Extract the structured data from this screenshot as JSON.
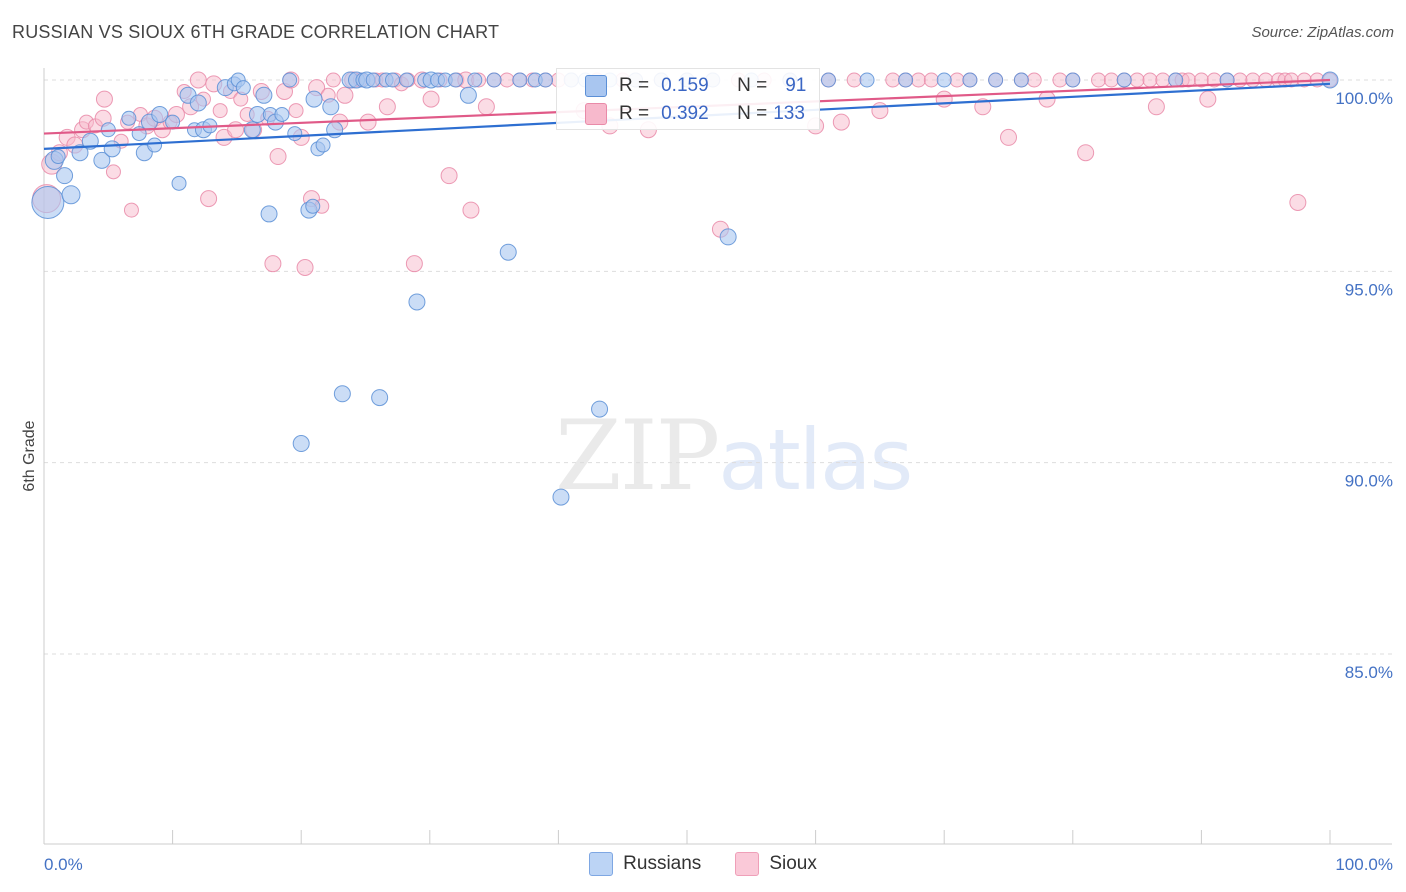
{
  "header": {
    "title": "RUSSIAN VS SIOUX 6TH GRADE CORRELATION CHART",
    "source": "Source: ZipAtlas.com"
  },
  "watermark": {
    "zip": "ZIP",
    "atlas": "atlas"
  },
  "colors": {
    "russians_fill": "#a9c6f0",
    "russians_stroke": "#5b8fd6",
    "russians_line": "#2e6fd1",
    "sioux_fill": "#f7b9cc",
    "sioux_stroke": "#e98aa8",
    "sioux_line": "#e05a88",
    "grid": "#dddddd",
    "axis_label": "#4472c4"
  },
  "legend": {
    "rows": [
      {
        "r_label": "R =",
        "r_value": "0.159",
        "n_label": "N =",
        "n_value": "91"
      },
      {
        "r_label": "R =",
        "r_value": "0.392",
        "n_label": "N =",
        "n_value": "133"
      }
    ],
    "bottom": [
      "Russians",
      "Sioux"
    ]
  },
  "chart_data": {
    "type": "scatter",
    "title": "RUSSIAN VS SIOUX 6TH GRADE CORRELATION CHART",
    "xlabel": "",
    "ylabel": "6th Grade",
    "xlim": [
      0,
      100
    ],
    "ylim": [
      80.5,
      100.3
    ],
    "x_tick_labels": [
      "0.0%",
      "100.0%"
    ],
    "y_ticks": [
      {
        "value": 100,
        "label": "100.0%"
      },
      {
        "value": 95,
        "label": "95.0%"
      },
      {
        "value": 90,
        "label": "90.0%"
      },
      {
        "value": 85,
        "label": "85.0%"
      }
    ],
    "series": [
      {
        "name": "Russians",
        "r": 0.159,
        "n": 91,
        "trend": {
          "x": [
            0,
            100
          ],
          "y": [
            98.2,
            99.9
          ]
        },
        "points": [
          [
            0.3,
            96.8,
            16
          ],
          [
            0.8,
            97.9,
            9
          ],
          [
            1.6,
            97.5,
            8
          ],
          [
            2.1,
            97.0,
            9
          ],
          [
            1.1,
            98.0,
            7
          ],
          [
            2.8,
            98.1,
            8
          ],
          [
            3.6,
            98.4,
            8
          ],
          [
            4.5,
            97.9,
            8
          ],
          [
            5.3,
            98.2,
            8
          ],
          [
            5.0,
            98.7,
            7
          ],
          [
            6.6,
            99.0,
            7
          ],
          [
            7.4,
            98.6,
            7
          ],
          [
            7.8,
            98.1,
            8
          ],
          [
            8.2,
            98.9,
            8
          ],
          [
            8.6,
            98.3,
            7
          ],
          [
            9.0,
            99.1,
            8
          ],
          [
            10.0,
            98.9,
            7
          ],
          [
            10.5,
            97.3,
            7
          ],
          [
            11.2,
            99.6,
            8
          ],
          [
            11.7,
            98.7,
            7
          ],
          [
            12.0,
            99.4,
            8
          ],
          [
            12.4,
            98.7,
            8
          ],
          [
            12.9,
            98.8,
            7
          ],
          [
            14.1,
            99.8,
            8
          ],
          [
            14.8,
            99.9,
            7
          ],
          [
            15.1,
            100.0,
            7
          ],
          [
            15.5,
            99.8,
            7
          ],
          [
            16.2,
            98.7,
            8
          ],
          [
            16.6,
            99.1,
            8
          ],
          [
            17.1,
            99.6,
            8
          ],
          [
            17.6,
            99.1,
            7
          ],
          [
            18.0,
            98.9,
            8
          ],
          [
            18.5,
            99.1,
            7
          ],
          [
            17.5,
            96.5,
            8
          ],
          [
            19.1,
            100.0,
            7
          ],
          [
            19.5,
            98.6,
            7
          ],
          [
            20.0,
            90.5,
            8
          ],
          [
            20.6,
            96.6,
            8
          ],
          [
            20.9,
            96.7,
            7
          ],
          [
            21.0,
            99.5,
            8
          ],
          [
            21.3,
            98.2,
            7
          ],
          [
            21.7,
            98.3,
            7
          ],
          [
            22.3,
            99.3,
            8
          ],
          [
            22.6,
            98.7,
            8
          ],
          [
            23.2,
            91.8,
            8
          ],
          [
            23.8,
            100.0,
            8
          ],
          [
            24.3,
            100.0,
            8
          ],
          [
            24.8,
            100.0,
            7
          ],
          [
            25.1,
            100.0,
            8
          ],
          [
            25.6,
            100.0,
            7
          ],
          [
            26.1,
            91.7,
            8
          ],
          [
            26.6,
            100.0,
            7
          ],
          [
            27.1,
            100.0,
            7
          ],
          [
            28.2,
            100.0,
            7
          ],
          [
            29.0,
            94.2,
            8
          ],
          [
            29.6,
            100.0,
            7
          ],
          [
            30.1,
            100.0,
            8
          ],
          [
            30.6,
            100.0,
            7
          ],
          [
            31.2,
            100.0,
            7
          ],
          [
            32.0,
            100.0,
            7
          ],
          [
            33.0,
            99.6,
            8
          ],
          [
            33.5,
            100.0,
            7
          ],
          [
            35.0,
            100.0,
            7
          ],
          [
            36.1,
            95.5,
            8
          ],
          [
            37.0,
            100.0,
            7
          ],
          [
            38.2,
            100.0,
            7
          ],
          [
            39.0,
            100.0,
            7
          ],
          [
            40.2,
            89.1,
            8
          ],
          [
            41.0,
            100.0,
            7
          ],
          [
            42.1,
            100.0,
            7
          ],
          [
            43.2,
            91.4,
            8
          ],
          [
            44.0,
            100.0,
            7
          ],
          [
            46.0,
            100.0,
            7
          ],
          [
            48.0,
            100.0,
            7
          ],
          [
            50.0,
            100.0,
            7
          ],
          [
            52.0,
            100.0,
            7
          ],
          [
            53.2,
            95.9,
            8
          ],
          [
            55.0,
            100.0,
            7
          ],
          [
            58.0,
            100.0,
            7
          ],
          [
            61.0,
            100.0,
            7
          ],
          [
            64.0,
            100.0,
            7
          ],
          [
            67.0,
            100.0,
            7
          ],
          [
            70.0,
            100.0,
            7
          ],
          [
            72.0,
            100.0,
            7
          ],
          [
            74.0,
            100.0,
            7
          ],
          [
            76.0,
            100.0,
            7
          ],
          [
            80.0,
            100.0,
            7
          ],
          [
            84.0,
            100.0,
            7
          ],
          [
            88.0,
            100.0,
            7
          ],
          [
            92.0,
            100.0,
            7
          ],
          [
            100.0,
            100.0,
            8
          ]
        ]
      },
      {
        "name": "Sioux",
        "r": 0.392,
        "n": 133,
        "trend": {
          "x": [
            0,
            100
          ],
          "y": [
            98.6,
            100.0
          ]
        },
        "points": [
          [
            0.2,
            96.9,
            14
          ],
          [
            0.6,
            97.8,
            10
          ],
          [
            1.2,
            98.1,
            8
          ],
          [
            1.8,
            98.5,
            8
          ],
          [
            2.4,
            98.3,
            8
          ],
          [
            3.0,
            98.7,
            8
          ],
          [
            3.3,
            98.9,
            7
          ],
          [
            4.0,
            98.8,
            7
          ],
          [
            4.6,
            99.0,
            8
          ],
          [
            4.7,
            99.5,
            8
          ],
          [
            5.4,
            97.6,
            7
          ],
          [
            6.0,
            98.4,
            7
          ],
          [
            6.5,
            98.9,
            7
          ],
          [
            6.8,
            96.6,
            7
          ],
          [
            7.5,
            99.1,
            7
          ],
          [
            8.0,
            98.8,
            8
          ],
          [
            8.6,
            99.0,
            8
          ],
          [
            9.2,
            98.7,
            8
          ],
          [
            9.8,
            98.9,
            7
          ],
          [
            10.3,
            99.1,
            8
          ],
          [
            10.9,
            99.7,
            7
          ],
          [
            11.4,
            99.3,
            8
          ],
          [
            12.0,
            100.0,
            8
          ],
          [
            12.4,
            99.5,
            7
          ],
          [
            12.8,
            96.9,
            8
          ],
          [
            13.2,
            99.9,
            8
          ],
          [
            13.7,
            99.2,
            7
          ],
          [
            14.0,
            98.5,
            8
          ],
          [
            14.5,
            99.7,
            7
          ],
          [
            14.9,
            98.7,
            8
          ],
          [
            15.3,
            99.5,
            7
          ],
          [
            15.8,
            99.1,
            7
          ],
          [
            16.3,
            98.7,
            8
          ],
          [
            16.9,
            99.7,
            8
          ],
          [
            17.4,
            99.0,
            7
          ],
          [
            17.8,
            95.2,
            8
          ],
          [
            18.2,
            98.0,
            8
          ],
          [
            18.7,
            99.7,
            8
          ],
          [
            19.2,
            100.0,
            8
          ],
          [
            19.6,
            99.2,
            7
          ],
          [
            20.0,
            98.5,
            8
          ],
          [
            20.3,
            95.1,
            8
          ],
          [
            20.8,
            96.9,
            8
          ],
          [
            21.2,
            99.8,
            8
          ],
          [
            21.6,
            96.7,
            7
          ],
          [
            22.1,
            99.6,
            7
          ],
          [
            22.5,
            100.0,
            7
          ],
          [
            23.0,
            98.9,
            8
          ],
          [
            23.4,
            99.6,
            8
          ],
          [
            24.0,
            100.0,
            8
          ],
          [
            24.6,
            100.0,
            7
          ],
          [
            25.2,
            98.9,
            8
          ],
          [
            25.8,
            100.0,
            7
          ],
          [
            26.3,
            100.0,
            7
          ],
          [
            26.7,
            99.3,
            8
          ],
          [
            27.3,
            100.0,
            7
          ],
          [
            27.8,
            99.9,
            7
          ],
          [
            28.3,
            100.0,
            7
          ],
          [
            28.8,
            95.2,
            8
          ],
          [
            29.4,
            100.0,
            8
          ],
          [
            30.1,
            99.5,
            8
          ],
          [
            30.8,
            100.0,
            7
          ],
          [
            31.5,
            97.5,
            8
          ],
          [
            32.1,
            100.0,
            7
          ],
          [
            32.8,
            100.0,
            8
          ],
          [
            33.2,
            96.6,
            8
          ],
          [
            33.8,
            100.0,
            7
          ],
          [
            34.4,
            99.3,
            8
          ],
          [
            35.0,
            100.0,
            7
          ],
          [
            36.0,
            100.0,
            7
          ],
          [
            37.0,
            100.0,
            7
          ],
          [
            38.0,
            100.0,
            7
          ],
          [
            39.0,
            100.0,
            7
          ],
          [
            40.0,
            100.0,
            7
          ],
          [
            41.0,
            100.0,
            7
          ],
          [
            42.0,
            99.2,
            8
          ],
          [
            43.0,
            100.0,
            7
          ],
          [
            44.0,
            98.8,
            8
          ],
          [
            45.0,
            100.0,
            7
          ],
          [
            46.0,
            100.0,
            7
          ],
          [
            47.0,
            98.7,
            8
          ],
          [
            48.0,
            100.0,
            7
          ],
          [
            50.0,
            100.0,
            7
          ],
          [
            52.0,
            100.0,
            7
          ],
          [
            52.6,
            96.1,
            8
          ],
          [
            54.0,
            100.0,
            7
          ],
          [
            56.0,
            100.0,
            7
          ],
          [
            58.0,
            100.0,
            7
          ],
          [
            60.0,
            98.8,
            8
          ],
          [
            61.0,
            100.0,
            7
          ],
          [
            62.0,
            98.9,
            8
          ],
          [
            63.0,
            100.0,
            7
          ],
          [
            65.0,
            99.2,
            8
          ],
          [
            66.0,
            100.0,
            7
          ],
          [
            67.0,
            100.0,
            7
          ],
          [
            68.0,
            100.0,
            7
          ],
          [
            69.0,
            100.0,
            7
          ],
          [
            70.0,
            99.5,
            8
          ],
          [
            71.0,
            100.0,
            7
          ],
          [
            72.0,
            100.0,
            7
          ],
          [
            73.0,
            99.3,
            8
          ],
          [
            74.0,
            100.0,
            7
          ],
          [
            75.0,
            98.5,
            8
          ],
          [
            76.0,
            100.0,
            7
          ],
          [
            77.0,
            100.0,
            7
          ],
          [
            78.0,
            99.5,
            8
          ],
          [
            79.0,
            100.0,
            7
          ],
          [
            80.0,
            100.0,
            7
          ],
          [
            81.0,
            98.1,
            8
          ],
          [
            82.0,
            100.0,
            7
          ],
          [
            83.0,
            100.0,
            7
          ],
          [
            84.0,
            100.0,
            7
          ],
          [
            85.0,
            100.0,
            7
          ],
          [
            86.0,
            100.0,
            7
          ],
          [
            86.5,
            99.3,
            8
          ],
          [
            87.0,
            100.0,
            7
          ],
          [
            88.0,
            100.0,
            7
          ],
          [
            88.5,
            100.0,
            7
          ],
          [
            89.0,
            100.0,
            7
          ],
          [
            90.0,
            100.0,
            7
          ],
          [
            90.5,
            99.5,
            8
          ],
          [
            91.0,
            100.0,
            7
          ],
          [
            92.0,
            100.0,
            7
          ],
          [
            93.0,
            100.0,
            7
          ],
          [
            94.0,
            100.0,
            7
          ],
          [
            95.0,
            100.0,
            7
          ],
          [
            96.0,
            100.0,
            7
          ],
          [
            96.5,
            100.0,
            7
          ],
          [
            97.0,
            100.0,
            7
          ],
          [
            97.5,
            96.8,
            8
          ],
          [
            98.0,
            100.0,
            7
          ],
          [
            99.0,
            100.0,
            7
          ],
          [
            100.0,
            100.0,
            7
          ]
        ]
      }
    ]
  }
}
